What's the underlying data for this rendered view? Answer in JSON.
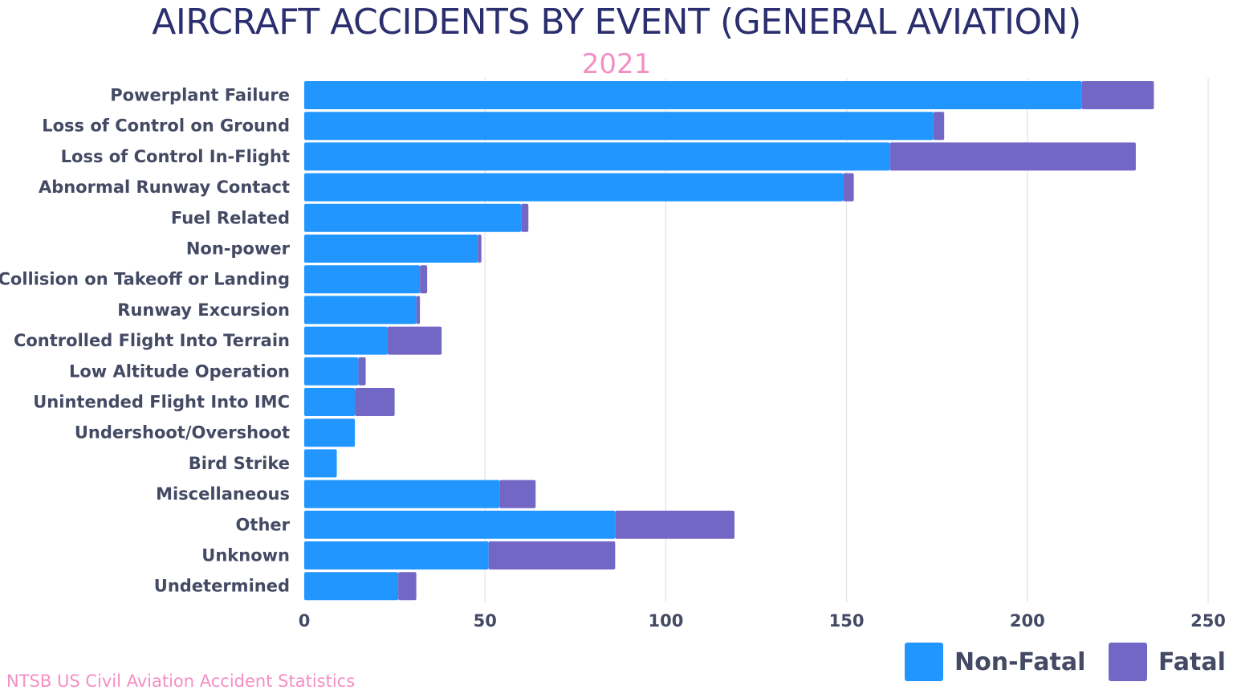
{
  "chart_data": {
    "type": "bar",
    "orientation": "horizontal",
    "stacked": true,
    "title": "AIRCRAFT ACCIDENTS BY EVENT (GENERAL AVIATION)",
    "subtitle": "2021",
    "categories": [
      "Powerplant Failure",
      "Loss of Control on Ground",
      "Loss of Control In-Flight",
      "Abnormal Runway Contact",
      "Fuel Related",
      "Non-power",
      "Collision on Takeoff or Landing",
      "Runway Excursion",
      "Controlled Flight Into Terrain",
      "Low Altitude Operation",
      "Unintended Flight Into IMC",
      "Undershoot/Overshoot",
      "Bird Strike",
      "Miscellaneous",
      "Other",
      "Unknown",
      "Undetermined"
    ],
    "series": [
      {
        "name": "Non-Fatal",
        "color": "#2196ff",
        "values": [
          215,
          174,
          162,
          149,
          60,
          48,
          32,
          31,
          23,
          15,
          14,
          14,
          9,
          54,
          86,
          51,
          26
        ]
      },
      {
        "name": "Fatal",
        "color": "#7367c6",
        "values": [
          20,
          3,
          68,
          3,
          2,
          1,
          2,
          1,
          15,
          2,
          11,
          0,
          0,
          10,
          33,
          35,
          5
        ]
      }
    ],
    "xlim": [
      0,
      250
    ],
    "xticks": [
      "0",
      "50",
      "100",
      "150",
      "200",
      "250"
    ],
    "grid": true,
    "legend_position": "bottom-right",
    "source": "NTSB US Civil Aviation Accident Statistics"
  }
}
